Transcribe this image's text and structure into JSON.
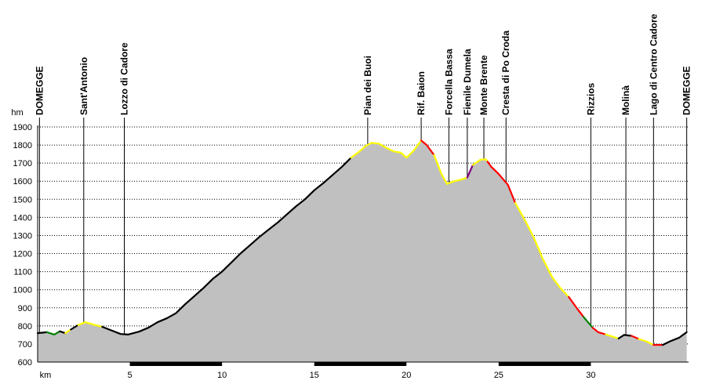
{
  "chart_data": {
    "type": "area",
    "y_unit_label": "hm",
    "x_unit_label": "km",
    "xlim": [
      0,
      35.3
    ],
    "ylim": [
      600,
      1900
    ],
    "x_ticks": [
      5,
      10,
      15,
      20,
      25,
      30
    ],
    "y_ticks": [
      600,
      700,
      800,
      900,
      1000,
      1100,
      1200,
      1300,
      1400,
      1500,
      1600,
      1700,
      1800,
      1900
    ],
    "grid": true,
    "fill_color": "#c0c0c0",
    "bar_segments": [
      [
        5,
        10
      ],
      [
        15,
        20
      ],
      [
        25,
        30
      ]
    ],
    "waypoints": [
      {
        "name": "DOMEGGE",
        "km": 0.1
      },
      {
        "name": "Sant'Antonio",
        "km": 2.5
      },
      {
        "name": "Lozzo di Cadore",
        "km": 4.7
      },
      {
        "name": "Pian dei Buoi",
        "km": 17.9
      },
      {
        "name": "Rif. Baion",
        "km": 20.8
      },
      {
        "name": "Forcella Bassa",
        "km": 22.3
      },
      {
        "name": "Fienile Dumela",
        "km": 23.3
      },
      {
        "name": "Monte Brente",
        "km": 24.2
      },
      {
        "name": "Cresta di Po Croda",
        "km": 25.4
      },
      {
        "name": "Rizzios",
        "km": 30.0
      },
      {
        "name": "Molinà",
        "km": 31.9
      },
      {
        "name": "Lago di Centro Cadore",
        "km": 33.4
      },
      {
        "name": "DOMEGGE",
        "km": 35.2
      }
    ],
    "profile": [
      [
        0,
        760
      ],
      [
        0.5,
        765
      ],
      [
        0.9,
        752
      ],
      [
        1.2,
        770
      ],
      [
        1.5,
        760
      ],
      [
        1.8,
        780
      ],
      [
        2.2,
        805
      ],
      [
        2.6,
        820
      ],
      [
        3.0,
        808
      ],
      [
        3.5,
        795
      ],
      [
        4.0,
        775
      ],
      [
        4.5,
        755
      ],
      [
        4.9,
        752
      ],
      [
        5.5,
        768
      ],
      [
        6.0,
        790
      ],
      [
        6.5,
        820
      ],
      [
        7.0,
        842
      ],
      [
        7.5,
        870
      ],
      [
        8.0,
        920
      ],
      [
        8.5,
        965
      ],
      [
        9.0,
        1010
      ],
      [
        9.5,
        1060
      ],
      [
        10.0,
        1100
      ],
      [
        10.5,
        1150
      ],
      [
        11.0,
        1200
      ],
      [
        11.5,
        1245
      ],
      [
        12.0,
        1290
      ],
      [
        12.5,
        1330
      ],
      [
        13.0,
        1370
      ],
      [
        13.5,
        1415
      ],
      [
        14.0,
        1460
      ],
      [
        14.5,
        1500
      ],
      [
        15.0,
        1550
      ],
      [
        15.5,
        1590
      ],
      [
        16.0,
        1635
      ],
      [
        16.5,
        1680
      ],
      [
        17.0,
        1730
      ],
      [
        17.4,
        1760
      ],
      [
        17.8,
        1795
      ],
      [
        18.1,
        1812
      ],
      [
        18.5,
        1808
      ],
      [
        18.9,
        1785
      ],
      [
        19.3,
        1765
      ],
      [
        19.7,
        1758
      ],
      [
        20.0,
        1730
      ],
      [
        20.4,
        1770
      ],
      [
        20.8,
        1825
      ],
      [
        21.1,
        1800
      ],
      [
        21.5,
        1745
      ],
      [
        21.9,
        1640
      ],
      [
        22.2,
        1585
      ],
      [
        22.6,
        1600
      ],
      [
        23.0,
        1610
      ],
      [
        23.3,
        1620
      ],
      [
        23.6,
        1690
      ],
      [
        24.0,
        1718
      ],
      [
        24.3,
        1722
      ],
      [
        24.6,
        1680
      ],
      [
        25.0,
        1640
      ],
      [
        25.5,
        1580
      ],
      [
        25.9,
        1480
      ],
      [
        26.4,
        1390
      ],
      [
        26.9,
        1290
      ],
      [
        27.4,
        1170
      ],
      [
        27.9,
        1070
      ],
      [
        28.3,
        1015
      ],
      [
        28.8,
        960
      ],
      [
        29.3,
        890
      ],
      [
        29.6,
        850
      ],
      [
        30.1,
        790
      ],
      [
        30.4,
        765
      ],
      [
        30.8,
        753
      ],
      [
        31.2,
        740
      ],
      [
        31.5,
        730
      ],
      [
        31.8,
        750
      ],
      [
        32.2,
        745
      ],
      [
        32.6,
        728
      ],
      [
        33.0,
        715
      ],
      [
        33.4,
        695
      ],
      [
        33.9,
        695
      ],
      [
        34.3,
        715
      ],
      [
        34.8,
        735
      ],
      [
        35.2,
        765
      ]
    ],
    "segments": [
      {
        "from": 0,
        "to": 0.5,
        "color": "#000000"
      },
      {
        "from": 0.5,
        "to": 1.2,
        "color": "#008000"
      },
      {
        "from": 1.2,
        "to": 1.5,
        "color": "#000000"
      },
      {
        "from": 1.5,
        "to": 1.8,
        "color": "#ffff00"
      },
      {
        "from": 1.8,
        "to": 2.2,
        "color": "#000000"
      },
      {
        "from": 2.2,
        "to": 3.5,
        "color": "#ffff00"
      },
      {
        "from": 3.5,
        "to": 17.0,
        "color": "#000000"
      },
      {
        "from": 17.0,
        "to": 20.8,
        "color": "#ffff00"
      },
      {
        "from": 20.8,
        "to": 21.5,
        "color": "#ff0000"
      },
      {
        "from": 21.5,
        "to": 23.3,
        "color": "#ffff00"
      },
      {
        "from": 23.3,
        "to": 23.6,
        "color": "#800080"
      },
      {
        "from": 23.6,
        "to": 24.4,
        "color": "#ffff00"
      },
      {
        "from": 24.4,
        "to": 25.9,
        "color": "#ff0000"
      },
      {
        "from": 25.9,
        "to": 28.8,
        "color": "#ffff00"
      },
      {
        "from": 28.8,
        "to": 29.6,
        "color": "#ff0000"
      },
      {
        "from": 29.6,
        "to": 30.1,
        "color": "#008000"
      },
      {
        "from": 30.1,
        "to": 30.8,
        "color": "#ff0000"
      },
      {
        "from": 30.8,
        "to": 31.5,
        "color": "#ffff00"
      },
      {
        "from": 31.5,
        "to": 32.2,
        "color": "#000000"
      },
      {
        "from": 32.2,
        "to": 32.6,
        "color": "#ff0000"
      },
      {
        "from": 32.6,
        "to": 33.4,
        "color": "#ffff00"
      },
      {
        "from": 33.4,
        "to": 33.9,
        "color": "#ff0000"
      },
      {
        "from": 33.9,
        "to": 35.2,
        "color": "#000000"
      }
    ]
  }
}
